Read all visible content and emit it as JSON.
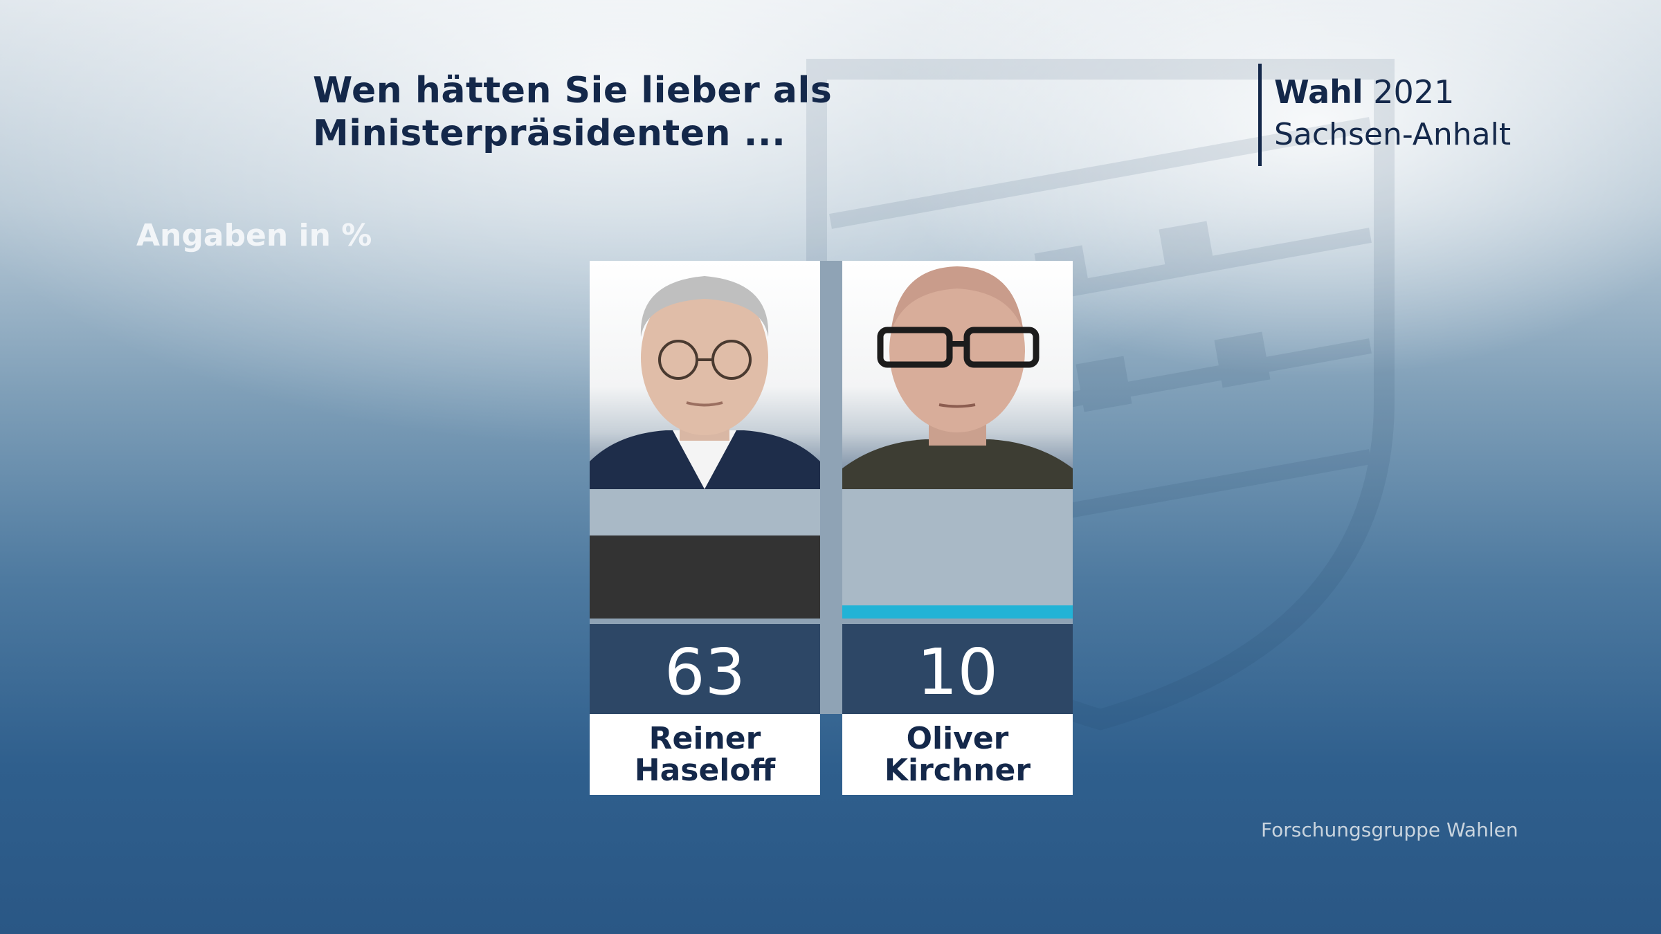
{
  "header": {
    "title": "Wen hätten Sie lieber als\nMinisterpräsidenten ...",
    "brand_bold": "Wahl",
    "brand_year": "2021",
    "brand_region": "Sachsen-Anhalt"
  },
  "unit_label": "Angaben in %",
  "source": "Forschungsgruppe Wahlen",
  "colors": {
    "haseloff_bar": "#333333",
    "kirchner_bar": "#22b3d6",
    "value_box": "#2d4766"
  },
  "chart_data": {
    "type": "bar",
    "categories": [
      "Reiner Haseloff",
      "Oliver Kirchner"
    ],
    "values": [
      63,
      10
    ],
    "ylabel": "Angaben in %",
    "labels": {
      "haseloff_name": "Reiner\nHaseloff",
      "kirchner_name": "Oliver\nKirchner",
      "haseloff_value": "63",
      "kirchner_value": "10"
    }
  }
}
